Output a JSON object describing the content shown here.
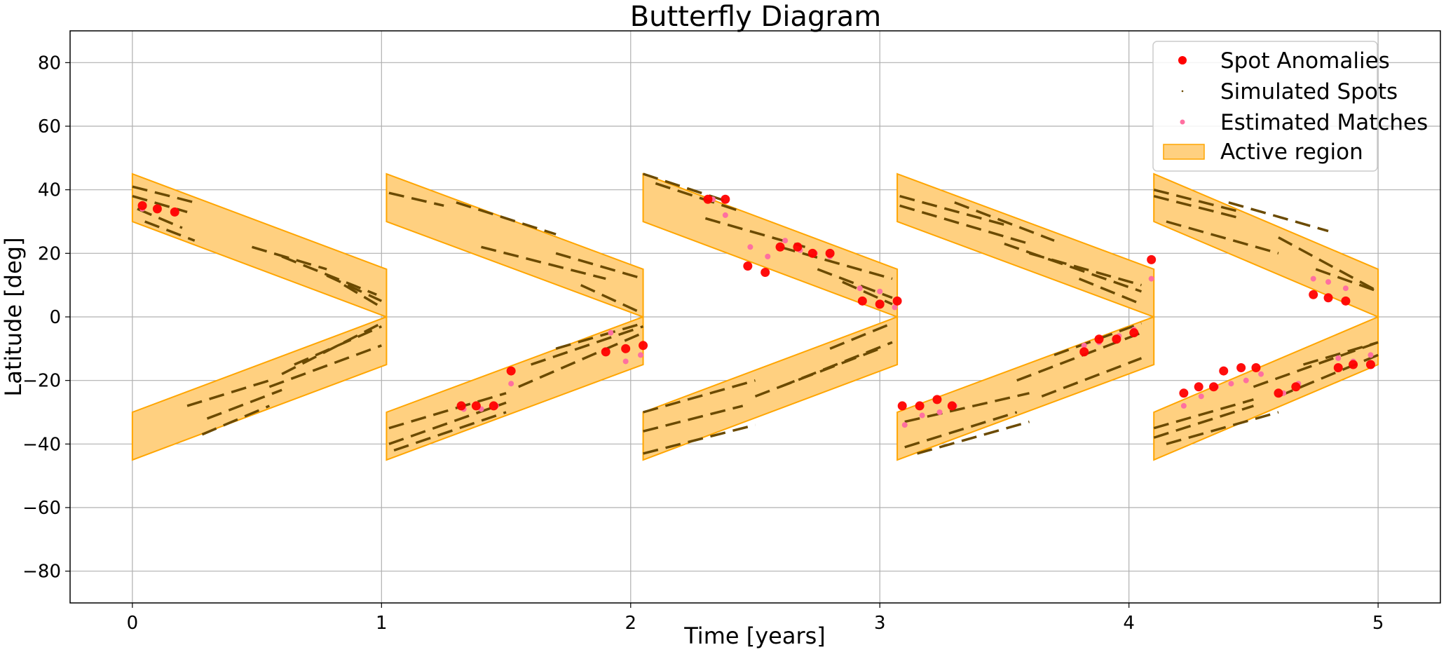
{
  "chart_data": {
    "type": "scatter",
    "title": "Butterfly Diagram",
    "xlabel": "Time [years]",
    "ylabel": "Latitude [deg]",
    "xlim": [
      -0.25,
      5.25
    ],
    "ylim": [
      -90,
      90
    ],
    "xticks": [
      0,
      1,
      2,
      3,
      4,
      5
    ],
    "yticks": [
      -80,
      -60,
      -40,
      -20,
      0,
      20,
      40,
      60,
      80
    ],
    "grid": true,
    "legend_position": "top-right",
    "colors": {
      "spot_anomalies": "#ff0000",
      "simulated_spots": "#6b4a00",
      "estimated_matches": "#ff6fa0",
      "active_region_fill": "#ffd080",
      "active_region_edge": "#ffa500"
    },
    "legend": [
      {
        "key": "spot_anomalies",
        "label": "Spot Anomalies",
        "marker": "large-dot"
      },
      {
        "key": "simulated_spots",
        "label": "Simulated Spots",
        "marker": "small-dot"
      },
      {
        "key": "estimated_matches",
        "label": "Estimated Matches",
        "marker": "medium-dot"
      },
      {
        "key": "active_region",
        "label": "Active region",
        "marker": "patch"
      }
    ],
    "active_region": {
      "cycles": [
        {
          "start": 0.0,
          "end": 1.02
        },
        {
          "start": 1.02,
          "end": 2.05
        },
        {
          "start": 2.05,
          "end": 3.07
        },
        {
          "start": 3.07,
          "end": 4.1
        },
        {
          "start": 4.1,
          "end": 5.0
        }
      ],
      "start_lat_outer": 45,
      "start_lat_inner": 30,
      "end_lat_outer": 15,
      "end_lat_inner": 0
    },
    "simulated_spots": [
      {
        "x": [
          0.0,
          0.25
        ],
        "y": [
          41,
          36
        ]
      },
      {
        "x": [
          0.0,
          0.22
        ],
        "y": [
          38,
          33
        ]
      },
      {
        "x": [
          0.02,
          0.2
        ],
        "y": [
          34,
          28
        ]
      },
      {
        "x": [
          0.05,
          0.25
        ],
        "y": [
          30,
          24
        ]
      },
      {
        "x": [
          0.48,
          0.78
        ],
        "y": [
          22,
          15
        ]
      },
      {
        "x": [
          0.6,
          0.98
        ],
        "y": [
          19,
          7
        ]
      },
      {
        "x": [
          0.78,
          1.0
        ],
        "y": [
          13,
          5
        ]
      },
      {
        "x": [
          0.85,
          1.0
        ],
        "y": [
          10,
          3
        ]
      },
      {
        "x": [
          0.22,
          0.55
        ],
        "y": [
          -28,
          -20
        ]
      },
      {
        "x": [
          0.3,
          0.6
        ],
        "y": [
          -32,
          -23
        ]
      },
      {
        "x": [
          0.28,
          0.55
        ],
        "y": [
          -37,
          -28
        ]
      },
      {
        "x": [
          0.6,
          1.0
        ],
        "y": [
          -18,
          -2
        ]
      },
      {
        "x": [
          0.65,
          1.0
        ],
        "y": [
          -15,
          -3
        ]
      },
      {
        "x": [
          0.55,
          1.0
        ],
        "y": [
          -22,
          -9
        ]
      },
      {
        "x": [
          1.03,
          1.25
        ],
        "y": [
          39,
          35
        ]
      },
      {
        "x": [
          1.3,
          1.7
        ],
        "y": [
          36,
          26
        ]
      },
      {
        "x": [
          1.4,
          1.9
        ],
        "y": [
          22,
          12
        ]
      },
      {
        "x": [
          1.7,
          2.05
        ],
        "y": [
          20,
          12
        ]
      },
      {
        "x": [
          1.8,
          2.05
        ],
        "y": [
          10,
          1
        ]
      },
      {
        "x": [
          1.03,
          1.5
        ],
        "y": [
          -35,
          -24
        ]
      },
      {
        "x": [
          1.03,
          1.5
        ],
        "y": [
          -40,
          -27
        ]
      },
      {
        "x": [
          1.05,
          1.5
        ],
        "y": [
          -42,
          -30
        ]
      },
      {
        "x": [
          1.55,
          2.05
        ],
        "y": [
          -22,
          -5
        ]
      },
      {
        "x": [
          1.6,
          2.05
        ],
        "y": [
          -15,
          -3
        ]
      },
      {
        "x": [
          1.7,
          2.05
        ],
        "y": [
          -10,
          -2
        ]
      },
      {
        "x": [
          2.05,
          2.4
        ],
        "y": [
          45,
          36
        ]
      },
      {
        "x": [
          2.1,
          2.45
        ],
        "y": [
          42,
          33
        ]
      },
      {
        "x": [
          2.3,
          2.7
        ],
        "y": [
          31,
          22
        ]
      },
      {
        "x": [
          2.6,
          3.05
        ],
        "y": [
          22,
          12
        ]
      },
      {
        "x": [
          2.75,
          3.05
        ],
        "y": [
          15,
          6
        ]
      },
      {
        "x": [
          2.85,
          3.05
        ],
        "y": [
          11,
          4
        ]
      },
      {
        "x": [
          2.05,
          2.5
        ],
        "y": [
          -30,
          -20
        ]
      },
      {
        "x": [
          2.05,
          2.45
        ],
        "y": [
          -36,
          -28
        ]
      },
      {
        "x": [
          2.05,
          2.5
        ],
        "y": [
          -43,
          -34
        ]
      },
      {
        "x": [
          2.5,
          3.0
        ],
        "y": [
          -25,
          -10
        ]
      },
      {
        "x": [
          2.6,
          3.05
        ],
        "y": [
          -22,
          -8
        ]
      },
      {
        "x": [
          2.8,
          3.05
        ],
        "y": [
          -10,
          -2
        ]
      },
      {
        "x": [
          3.08,
          3.5
        ],
        "y": [
          38,
          29
        ]
      },
      {
        "x": [
          3.08,
          3.6
        ],
        "y": [
          35,
          23
        ]
      },
      {
        "x": [
          3.3,
          3.7
        ],
        "y": [
          36,
          24
        ]
      },
      {
        "x": [
          3.5,
          4.05
        ],
        "y": [
          23,
          8
        ]
      },
      {
        "x": [
          3.6,
          4.05
        ],
        "y": [
          20,
          10
        ]
      },
      {
        "x": [
          3.8,
          4.05
        ],
        "y": [
          12,
          4
        ]
      },
      {
        "x": [
          3.1,
          3.6
        ],
        "y": [
          -33,
          -24
        ]
      },
      {
        "x": [
          3.1,
          3.55
        ],
        "y": [
          -41,
          -30
        ]
      },
      {
        "x": [
          3.15,
          3.6
        ],
        "y": [
          -43,
          -33
        ]
      },
      {
        "x": [
          3.55,
          4.05
        ],
        "y": [
          -20,
          -5
        ]
      },
      {
        "x": [
          3.65,
          4.05
        ],
        "y": [
          -25,
          -13
        ]
      },
      {
        "x": [
          3.7,
          4.05
        ],
        "y": [
          -12,
          -2
        ]
      },
      {
        "x": [
          4.1,
          4.45
        ],
        "y": [
          40,
          33
        ]
      },
      {
        "x": [
          4.1,
          4.45
        ],
        "y": [
          38,
          31
        ]
      },
      {
        "x": [
          4.15,
          4.6
        ],
        "y": [
          30,
          20
        ]
      },
      {
        "x": [
          4.4,
          4.8
        ],
        "y": [
          36,
          27
        ]
      },
      {
        "x": [
          4.6,
          5.0
        ],
        "y": [
          25,
          8
        ]
      },
      {
        "x": [
          4.75,
          5.0
        ],
        "y": [
          15,
          8
        ]
      },
      {
        "x": [
          4.1,
          4.5
        ],
        "y": [
          -35,
          -26
        ]
      },
      {
        "x": [
          4.1,
          4.5
        ],
        "y": [
          -38,
          -28
        ]
      },
      {
        "x": [
          4.15,
          4.6
        ],
        "y": [
          -40,
          -30
        ]
      },
      {
        "x": [
          4.5,
          5.0
        ],
        "y": [
          -22,
          -8
        ]
      },
      {
        "x": [
          4.6,
          5.0
        ],
        "y": [
          -25,
          -12
        ]
      },
      {
        "x": [
          4.7,
          5.0
        ],
        "y": [
          -15,
          -8
        ]
      }
    ],
    "spot_anomalies": [
      {
        "x": 0.04,
        "y": 35
      },
      {
        "x": 0.1,
        "y": 34
      },
      {
        "x": 0.17,
        "y": 33
      },
      {
        "x": 1.32,
        "y": -28
      },
      {
        "x": 1.38,
        "y": -28
      },
      {
        "x": 1.45,
        "y": -28
      },
      {
        "x": 1.52,
        "y": -17
      },
      {
        "x": 1.9,
        "y": -11
      },
      {
        "x": 1.98,
        "y": -10
      },
      {
        "x": 2.05,
        "y": -9
      },
      {
        "x": 2.31,
        "y": 37
      },
      {
        "x": 2.38,
        "y": 37
      },
      {
        "x": 2.47,
        "y": 16
      },
      {
        "x": 2.54,
        "y": 14
      },
      {
        "x": 2.6,
        "y": 22
      },
      {
        "x": 2.67,
        "y": 22
      },
      {
        "x": 2.73,
        "y": 20
      },
      {
        "x": 2.8,
        "y": 20
      },
      {
        "x": 2.93,
        "y": 5
      },
      {
        "x": 3.0,
        "y": 4
      },
      {
        "x": 3.07,
        "y": 5
      },
      {
        "x": 3.09,
        "y": -28
      },
      {
        "x": 3.16,
        "y": -28
      },
      {
        "x": 3.23,
        "y": -26
      },
      {
        "x": 3.29,
        "y": -28
      },
      {
        "x": 3.82,
        "y": -11
      },
      {
        "x": 3.88,
        "y": -7
      },
      {
        "x": 3.95,
        "y": -7
      },
      {
        "x": 4.02,
        "y": -5
      },
      {
        "x": 4.09,
        "y": 18
      },
      {
        "x": 4.22,
        "y": -24
      },
      {
        "x": 4.28,
        "y": -22
      },
      {
        "x": 4.34,
        "y": -22
      },
      {
        "x": 4.38,
        "y": -17
      },
      {
        "x": 4.45,
        "y": -16
      },
      {
        "x": 4.51,
        "y": -16
      },
      {
        "x": 4.6,
        "y": -24
      },
      {
        "x": 4.67,
        "y": -22
      },
      {
        "x": 4.74,
        "y": 7
      },
      {
        "x": 4.8,
        "y": 6
      },
      {
        "x": 4.87,
        "y": 5
      },
      {
        "x": 4.84,
        "y": -16
      },
      {
        "x": 4.9,
        "y": -15
      },
      {
        "x": 4.97,
        "y": -15
      }
    ],
    "estimated_matches": [
      {
        "x": 0.04,
        "y": 34
      },
      {
        "x": 0.1,
        "y": 34
      },
      {
        "x": 0.17,
        "y": 33
      },
      {
        "x": 1.33,
        "y": -29
      },
      {
        "x": 1.4,
        "y": -29
      },
      {
        "x": 1.46,
        "y": -28
      },
      {
        "x": 1.52,
        "y": -21
      },
      {
        "x": 1.92,
        "y": -5
      },
      {
        "x": 1.98,
        "y": -14
      },
      {
        "x": 2.04,
        "y": -12
      },
      {
        "x": 2.33,
        "y": 37
      },
      {
        "x": 2.38,
        "y": 32
      },
      {
        "x": 2.48,
        "y": 22
      },
      {
        "x": 2.55,
        "y": 19
      },
      {
        "x": 2.62,
        "y": 24
      },
      {
        "x": 2.68,
        "y": 21
      },
      {
        "x": 2.74,
        "y": 20
      },
      {
        "x": 2.8,
        "y": 19
      },
      {
        "x": 2.92,
        "y": 9
      },
      {
        "x": 3.0,
        "y": 8
      },
      {
        "x": 3.06,
        "y": 3
      },
      {
        "x": 3.1,
        "y": -34
      },
      {
        "x": 3.17,
        "y": -31
      },
      {
        "x": 3.24,
        "y": -30
      },
      {
        "x": 3.3,
        "y": -28
      },
      {
        "x": 3.82,
        "y": -9
      },
      {
        "x": 3.88,
        "y": -8
      },
      {
        "x": 3.96,
        "y": -6
      },
      {
        "x": 4.02,
        "y": -4
      },
      {
        "x": 4.09,
        "y": 12
      },
      {
        "x": 4.22,
        "y": -28
      },
      {
        "x": 4.29,
        "y": -25
      },
      {
        "x": 4.35,
        "y": -22
      },
      {
        "x": 4.41,
        "y": -21
      },
      {
        "x": 4.47,
        "y": -20
      },
      {
        "x": 4.53,
        "y": -18
      },
      {
        "x": 4.62,
        "y": -24
      },
      {
        "x": 4.68,
        "y": -21
      },
      {
        "x": 4.74,
        "y": 12
      },
      {
        "x": 4.8,
        "y": 11
      },
      {
        "x": 4.87,
        "y": 9
      },
      {
        "x": 4.84,
        "y": -13
      },
      {
        "x": 4.9,
        "y": -14
      },
      {
        "x": 4.97,
        "y": -12
      }
    ]
  }
}
